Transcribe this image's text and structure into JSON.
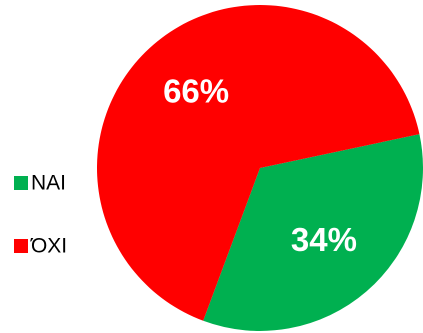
{
  "chart_data": {
    "type": "pie",
    "categories": [
      "ΝΑΙ",
      "ΌΧΙ"
    ],
    "values": [
      34,
      66
    ],
    "value_labels": [
      "34%",
      "66%"
    ],
    "colors": [
      "#00b050",
      "#ff0000"
    ],
    "legend": "left"
  }
}
